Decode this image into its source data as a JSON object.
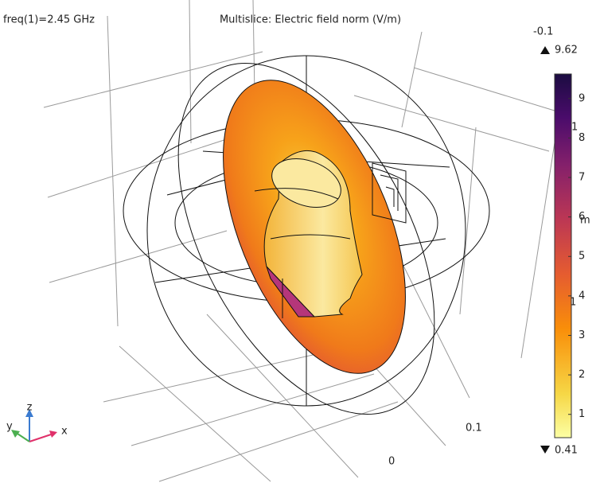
{
  "header": {
    "left": "freq(1)=2.45 GHz",
    "title": "Multislice: Electric field norm (V/m)"
  },
  "colorbar": {
    "max": 9.62,
    "min": 0.41,
    "ticks": [
      1,
      2,
      3,
      4,
      5,
      6,
      7,
      8,
      9
    ]
  },
  "scene_labels": [
    "-0.1",
    "0.1",
    "0",
    "1",
    "m",
    "1"
  ],
  "triad": {
    "x": "x",
    "y": "y",
    "z": "z"
  }
}
